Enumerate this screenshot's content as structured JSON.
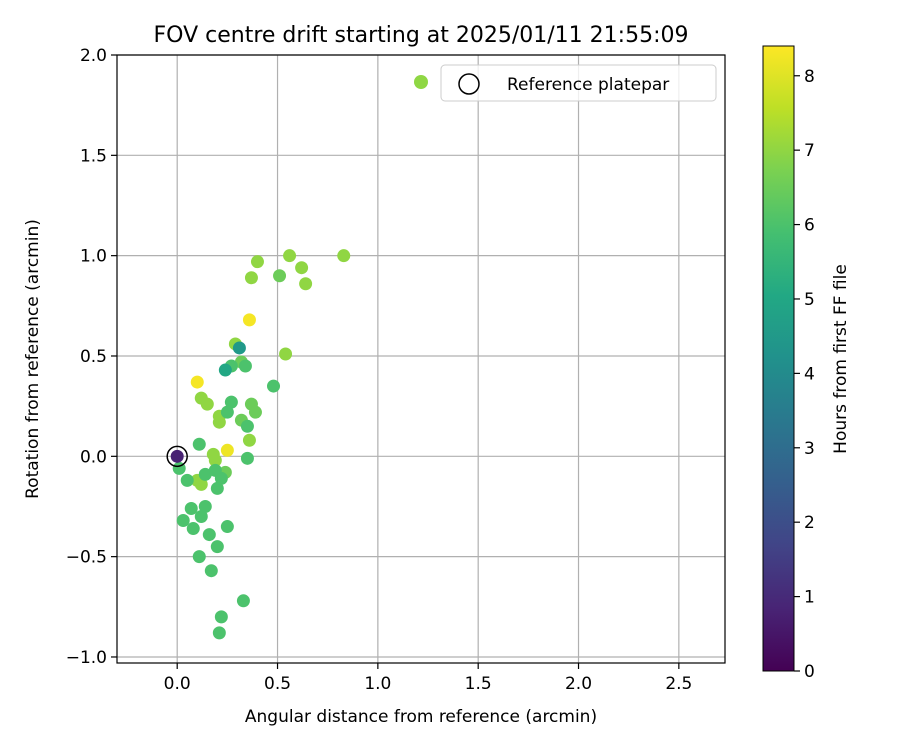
{
  "chart_data": {
    "type": "scatter",
    "title": "FOV centre drift starting at 2025/01/11 21:55:09",
    "xlabel": "Angular distance from reference (arcmin)",
    "ylabel": "Rotation from reference (arcmin)",
    "xlim": [
      -0.3,
      2.73
    ],
    "ylim": [
      -1.03,
      2.0
    ],
    "xticks": [
      0.0,
      0.5,
      1.0,
      1.5,
      2.0,
      2.5
    ],
    "xtick_labels": [
      "0.0",
      "0.5",
      "1.0",
      "1.5",
      "2.0",
      "2.5"
    ],
    "yticks": [
      -1.0,
      -0.5,
      0.0,
      0.5,
      1.0,
      1.5,
      2.0
    ],
    "ytick_labels": [
      "−1.0",
      "−0.5",
      "0.0",
      "0.5",
      "1.0",
      "1.5",
      "2.0"
    ],
    "grid": true,
    "colormap": "viridis",
    "colorbar": {
      "label": "Hours from first FF file",
      "min": 0,
      "max": 8.4,
      "ticks": [
        0,
        1,
        2,
        3,
        4,
        5,
        6,
        7,
        8
      ],
      "tick_labels": [
        "0",
        "1",
        "2",
        "3",
        "4",
        "5",
        "6",
        "7",
        "8"
      ]
    },
    "legend": {
      "placement": "top-right",
      "entries": [
        {
          "label": "",
          "marker": "filled-circle",
          "color": "#8fd744"
        },
        {
          "label": "Reference platepar",
          "marker": "open-circle",
          "color": "#000000"
        }
      ]
    },
    "reference_point": {
      "x": 0.0,
      "y": 0.0,
      "label": "Reference platepar"
    },
    "points": [
      {
        "x": 0.0,
        "y": 0.0,
        "hours": 0.8
      },
      {
        "x": 0.01,
        "y": -0.06,
        "hours": 6.0
      },
      {
        "x": 0.05,
        "y": -0.12,
        "hours": 6.0
      },
      {
        "x": 0.03,
        "y": -0.32,
        "hours": 6.0
      },
      {
        "x": 0.07,
        "y": -0.26,
        "hours": 6.0
      },
      {
        "x": 0.08,
        "y": -0.36,
        "hours": 6.0
      },
      {
        "x": 0.11,
        "y": -0.5,
        "hours": 6.0
      },
      {
        "x": 0.1,
        "y": -0.12,
        "hours": 7.0
      },
      {
        "x": 0.12,
        "y": -0.14,
        "hours": 7.0
      },
      {
        "x": 0.12,
        "y": -0.3,
        "hours": 6.0
      },
      {
        "x": 0.14,
        "y": -0.25,
        "hours": 6.0
      },
      {
        "x": 0.16,
        "y": -0.39,
        "hours": 6.0
      },
      {
        "x": 0.17,
        "y": -0.57,
        "hours": 6.0
      },
      {
        "x": 0.2,
        "y": -0.45,
        "hours": 6.0
      },
      {
        "x": 0.21,
        "y": -0.88,
        "hours": 6.0
      },
      {
        "x": 0.22,
        "y": -0.8,
        "hours": 6.0
      },
      {
        "x": 0.25,
        "y": -0.35,
        "hours": 6.0
      },
      {
        "x": 0.33,
        "y": -0.72,
        "hours": 6.0
      },
      {
        "x": 0.14,
        "y": -0.09,
        "hours": 6.0
      },
      {
        "x": 0.19,
        "y": -0.07,
        "hours": 6.0
      },
      {
        "x": 0.2,
        "y": -0.16,
        "hours": 6.0
      },
      {
        "x": 0.22,
        "y": -0.11,
        "hours": 6.0
      },
      {
        "x": 0.24,
        "y": -0.08,
        "hours": 6.5
      },
      {
        "x": 0.35,
        "y": -0.01,
        "hours": 6.0
      },
      {
        "x": 0.11,
        "y": 0.06,
        "hours": 6.0
      },
      {
        "x": 0.18,
        "y": 0.01,
        "hours": 7.0
      },
      {
        "x": 0.19,
        "y": -0.02,
        "hours": 7.0
      },
      {
        "x": 0.25,
        "y": 0.03,
        "hours": 8.2
      },
      {
        "x": 0.36,
        "y": 0.08,
        "hours": 7.0
      },
      {
        "x": 0.35,
        "y": 0.15,
        "hours": 6.0
      },
      {
        "x": 0.21,
        "y": 0.17,
        "hours": 7.0
      },
      {
        "x": 0.21,
        "y": 0.2,
        "hours": 7.0
      },
      {
        "x": 0.25,
        "y": 0.22,
        "hours": 6.0
      },
      {
        "x": 0.32,
        "y": 0.18,
        "hours": 6.5
      },
      {
        "x": 0.12,
        "y": 0.29,
        "hours": 7.0
      },
      {
        "x": 0.15,
        "y": 0.26,
        "hours": 7.0
      },
      {
        "x": 0.27,
        "y": 0.27,
        "hours": 6.0
      },
      {
        "x": 0.37,
        "y": 0.26,
        "hours": 6.5
      },
      {
        "x": 0.39,
        "y": 0.22,
        "hours": 6.5
      },
      {
        "x": 0.1,
        "y": 0.37,
        "hours": 8.3
      },
      {
        "x": 0.24,
        "y": 0.43,
        "hours": 5.0
      },
      {
        "x": 0.27,
        "y": 0.45,
        "hours": 6.0
      },
      {
        "x": 0.31,
        "y": 0.54,
        "hours": 4.5
      },
      {
        "x": 0.29,
        "y": 0.56,
        "hours": 7.0
      },
      {
        "x": 0.32,
        "y": 0.47,
        "hours": 6.5
      },
      {
        "x": 0.34,
        "y": 0.45,
        "hours": 6.0
      },
      {
        "x": 0.36,
        "y": 0.68,
        "hours": 8.3
      },
      {
        "x": 0.48,
        "y": 0.35,
        "hours": 6.0
      },
      {
        "x": 0.54,
        "y": 0.51,
        "hours": 7.0
      },
      {
        "x": 0.37,
        "y": 0.89,
        "hours": 7.0
      },
      {
        "x": 0.4,
        "y": 0.97,
        "hours": 7.0
      },
      {
        "x": 0.51,
        "y": 0.9,
        "hours": 6.5
      },
      {
        "x": 0.56,
        "y": 1.0,
        "hours": 7.0
      },
      {
        "x": 0.62,
        "y": 0.94,
        "hours": 7.0
      },
      {
        "x": 0.64,
        "y": 0.86,
        "hours": 7.0
      },
      {
        "x": 0.83,
        "y": 1.0,
        "hours": 7.0
      }
    ]
  }
}
